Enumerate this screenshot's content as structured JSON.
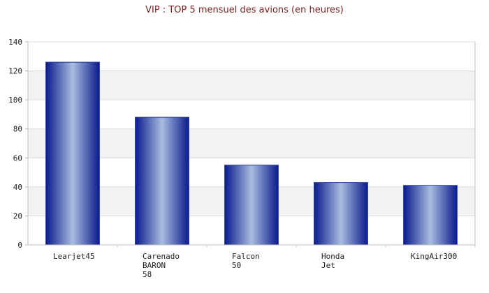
{
  "chart_data": {
    "type": "bar",
    "title": "VIP : TOP 5 mensuel des avions (en heures)",
    "xlabel": "",
    "ylabel": "",
    "categories": [
      [
        "Learjet45"
      ],
      [
        "Carenado",
        "BARON",
        "58"
      ],
      [
        "Falcon",
        "50"
      ],
      [
        "Honda",
        "Jet"
      ],
      [
        "KingAir300"
      ]
    ],
    "values": [
      126,
      88,
      55,
      43,
      41
    ],
    "ylim": [
      0,
      140
    ],
    "yticks": [
      0,
      20,
      40,
      60,
      80,
      100,
      120,
      140
    ],
    "grid": true,
    "legend": "none",
    "colors": {
      "bar_edge": "#0b1a8c",
      "bar_center": "#a9bde0",
      "bar_top": "#1e3aa8",
      "band": "#f2f2f2",
      "grid": "#dddddd",
      "axis": "#bdbdbd",
      "title": "#7a1f1f"
    }
  }
}
